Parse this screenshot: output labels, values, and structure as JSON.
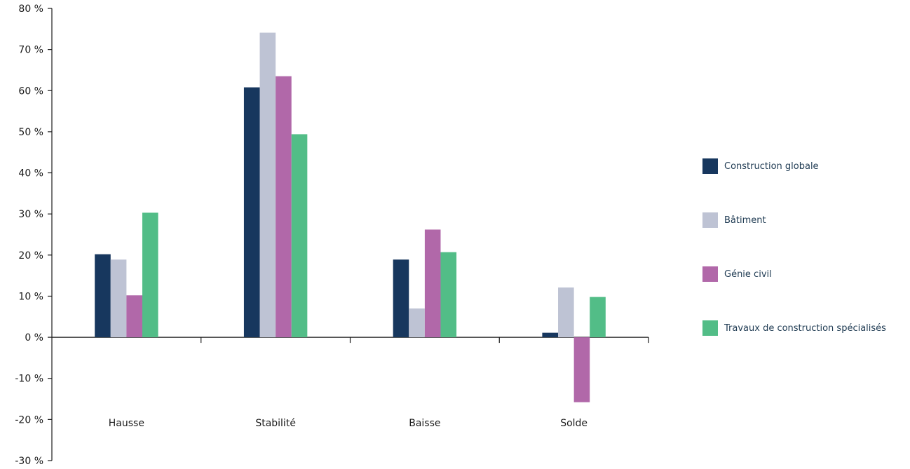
{
  "chart_data": {
    "type": "bar",
    "categories": [
      "Hausse",
      "Stabilité",
      "Baisse",
      "Solde"
    ],
    "y_tick_labels": [
      "80 %",
      "70 %",
      "60 %",
      "50 %",
      "40 %",
      "30 %",
      "20 %",
      "10 %",
      "0 %",
      "-10 %",
      "-20 %",
      "-30 %"
    ],
    "y_ticks": [
      80,
      70,
      60,
      50,
      40,
      30,
      20,
      10,
      0,
      -10,
      -20,
      -30
    ],
    "ylim": [
      -30,
      80
    ],
    "title": "",
    "xlabel": "",
    "ylabel": "",
    "grid": false,
    "legend_position": "right",
    "series": [
      {
        "name": "Construction globale",
        "color": "#17375e",
        "values": [
          20.2,
          60.8,
          18.9,
          1.1
        ]
      },
      {
        "name": "Bâtiment",
        "color": "#bec3d4",
        "values": [
          18.9,
          74.1,
          7.0,
          12.1
        ]
      },
      {
        "name": "Génie civil",
        "color": "#b168a9",
        "values": [
          10.2,
          63.5,
          26.2,
          -15.8
        ]
      },
      {
        "name": "Travaux de construction spécialisés",
        "color": "#52bd87",
        "values": [
          30.3,
          49.4,
          20.7,
          9.8
        ]
      }
    ]
  }
}
